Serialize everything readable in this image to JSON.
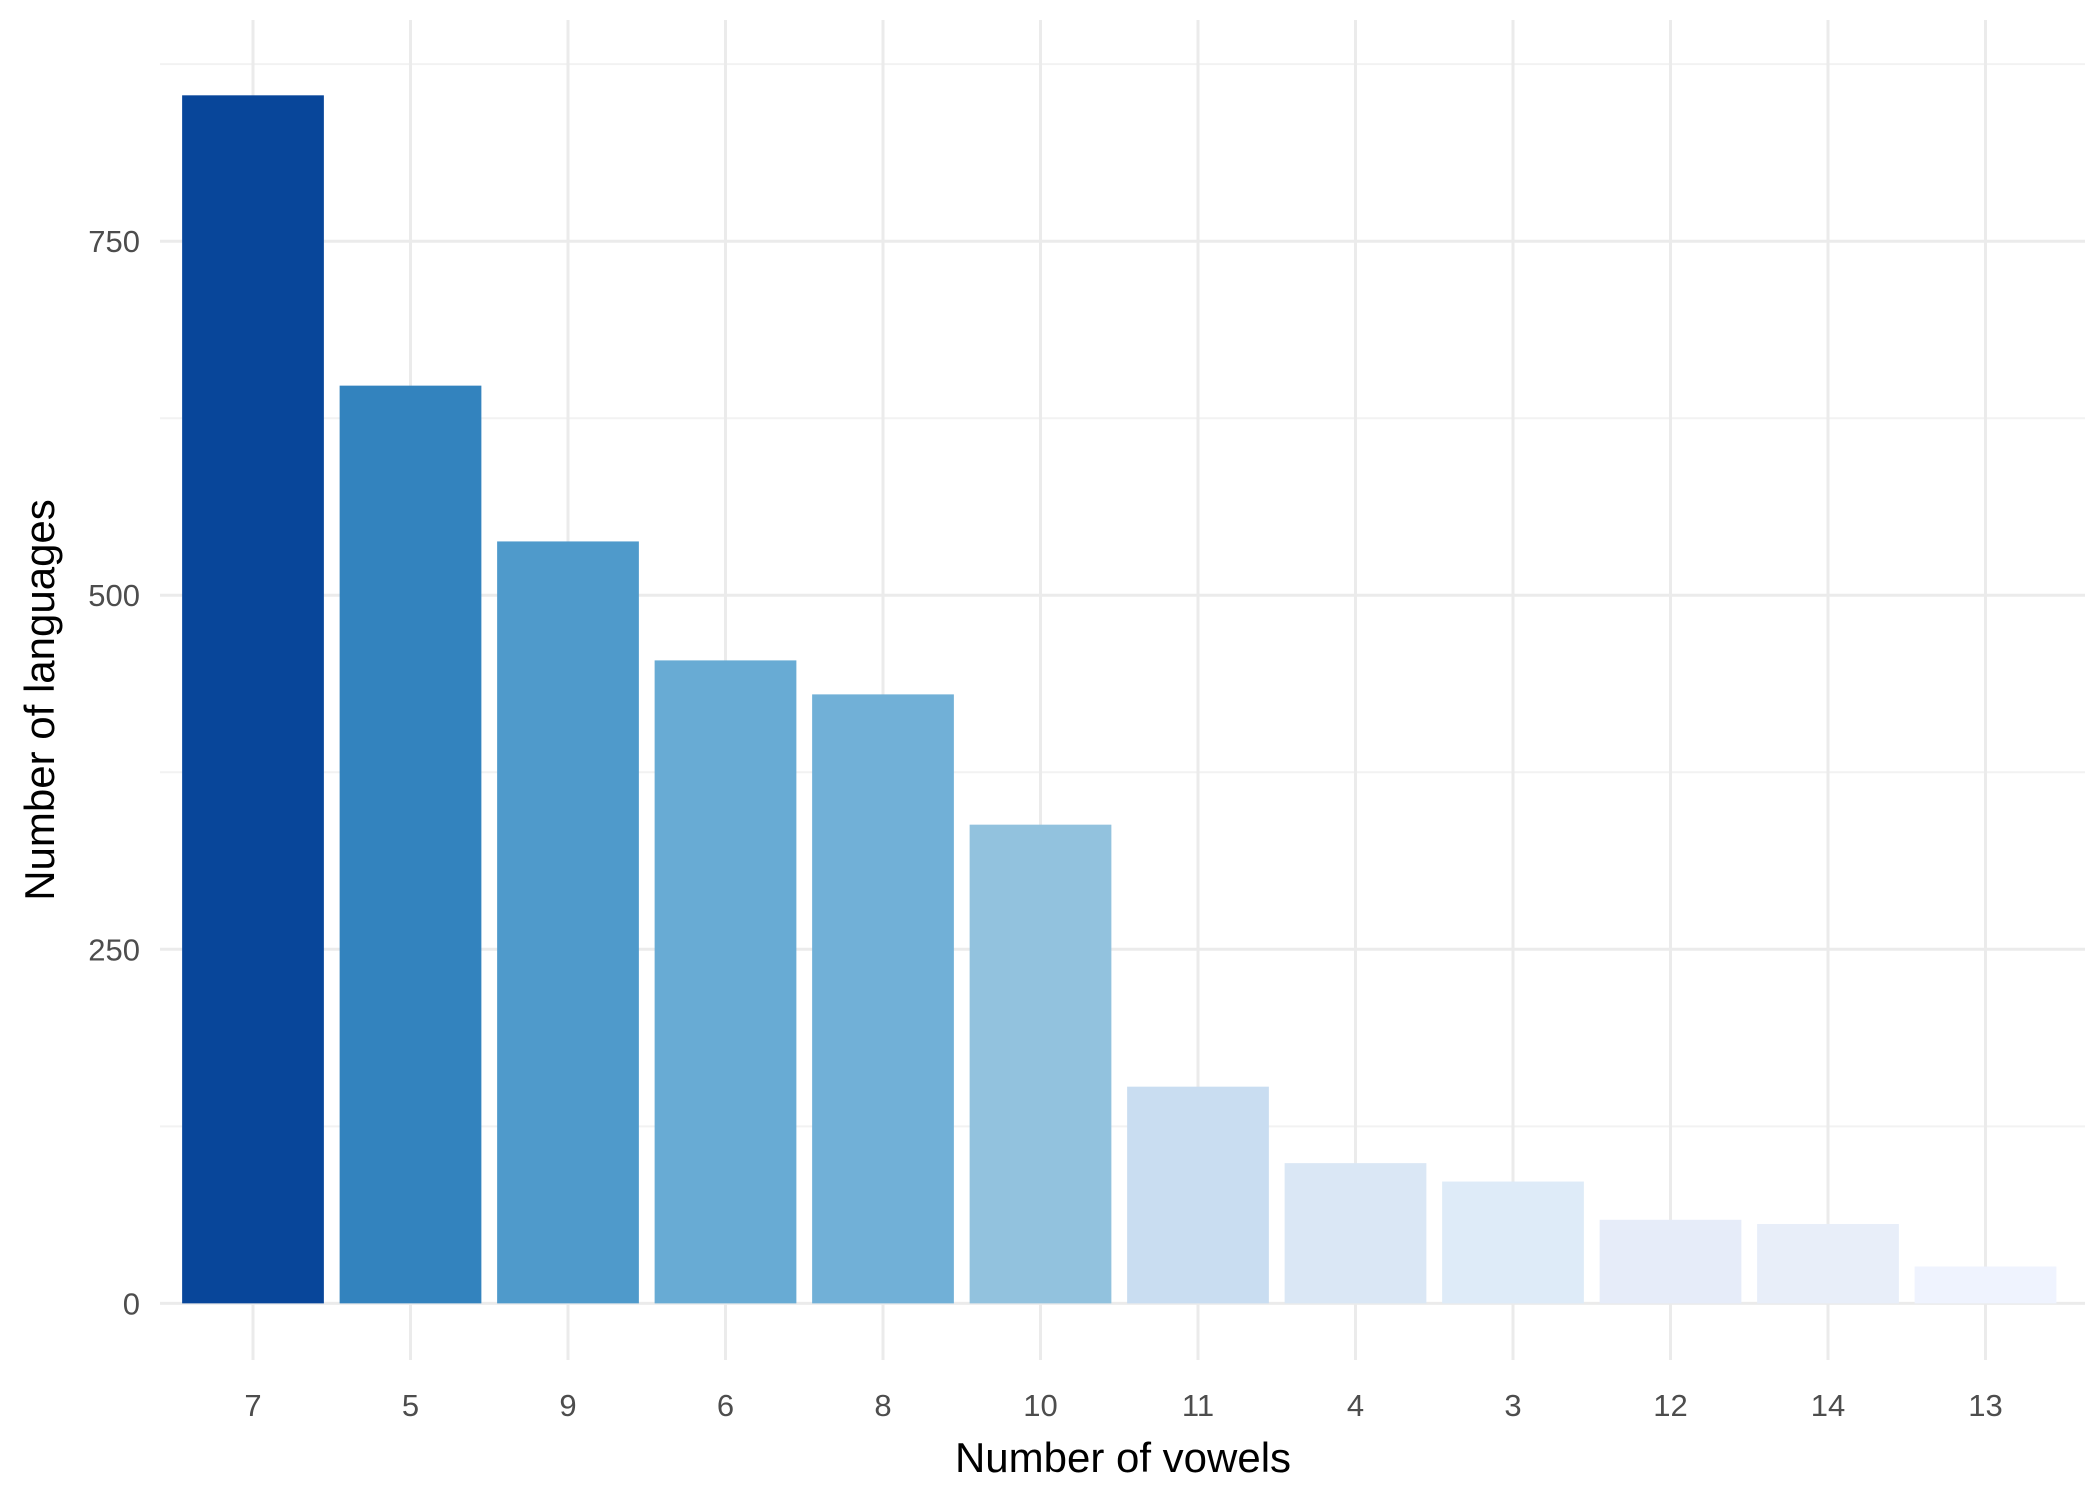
{
  "chart_data": {
    "type": "bar",
    "xlabel": "Number of vowels",
    "ylabel": "Number of languages",
    "categories": [
      "7",
      "5",
      "9",
      "6",
      "8",
      "10",
      "11",
      "4",
      "3",
      "12",
      "14",
      "13"
    ],
    "values": [
      853,
      648,
      538,
      454,
      430,
      338,
      153,
      99,
      86,
      59,
      56,
      26
    ],
    "colors": [
      "#08469a",
      "#3383be",
      "#4f9acb",
      "#68abd4",
      "#71b0d7",
      "#92c2de",
      "#c9ddf1",
      "#dae7f5",
      "#deebf8",
      "#e6ecf9",
      "#e8eef9",
      "#eff3fe"
    ],
    "yticks": [
      0,
      250,
      500,
      750
    ],
    "ylim": [
      -40,
      885
    ],
    "grid": true,
    "legend": "none"
  }
}
